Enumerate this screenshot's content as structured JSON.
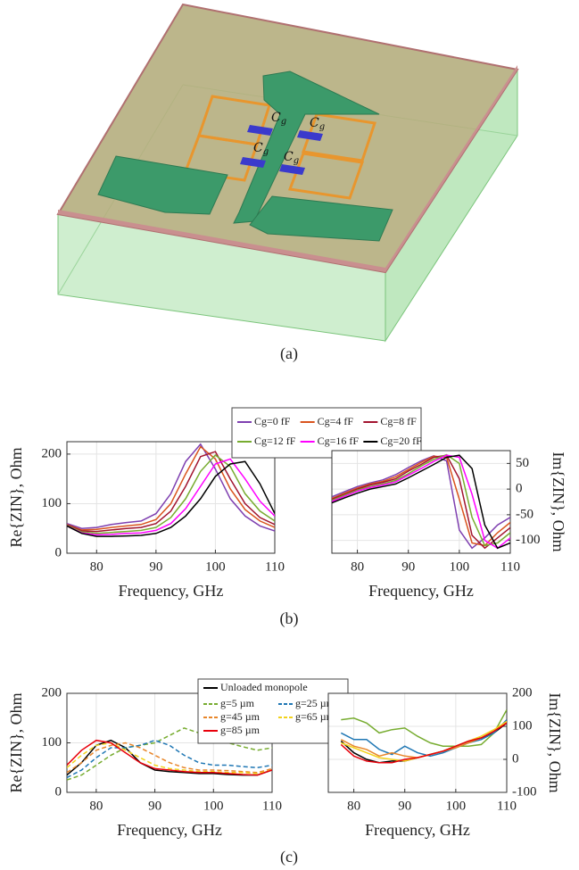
{
  "diagram": {
    "capacitor_labels": [
      {
        "main": "C",
        "sub": "g"
      },
      {
        "main": "C",
        "sub": "g"
      },
      {
        "main": "C",
        "sub": "g"
      },
      {
        "main": "C",
        "sub": "g"
      }
    ]
  },
  "captions": [
    "(a)",
    "(b)",
    "(c)"
  ],
  "chart_data": [
    {
      "type": "line",
      "xlabel": "Frequency, GHz",
      "ylabel": "Re{ZIN}, Ohm",
      "yaxis": "left",
      "grid": true,
      "xlim": [
        75,
        110
      ],
      "ylim": [
        0,
        225
      ],
      "xticks": [
        80,
        90,
        100,
        110
      ],
      "yticks": [
        0,
        100,
        200
      ],
      "x": [
        75,
        77.5,
        80,
        82.5,
        85,
        87.5,
        90,
        92.5,
        95,
        97.5,
        100,
        102.5,
        105,
        107.5,
        110
      ],
      "series": [
        {
          "name": "Cg=0 fF",
          "color": "#7e3fb0",
          "values": [
            60,
            50,
            52,
            58,
            62,
            65,
            80,
            120,
            185,
            220,
            170,
            110,
            75,
            55,
            45
          ]
        },
        {
          "name": "Cg=4 fF",
          "color": "#d9541e",
          "values": [
            58,
            47,
            48,
            52,
            55,
            58,
            68,
            100,
            160,
            215,
            190,
            130,
            88,
            65,
            52
          ]
        },
        {
          "name": "Cg=8 fF",
          "color": "#a2142f",
          "values": [
            57,
            45,
            44,
            47,
            50,
            52,
            60,
            85,
            135,
            195,
            205,
            150,
            100,
            72,
            58
          ]
        },
        {
          "name": "Cg=12 fF",
          "color": "#77ac30",
          "values": [
            56,
            43,
            40,
            42,
            44,
            46,
            52,
            72,
            110,
            165,
            198,
            175,
            120,
            85,
            65
          ]
        },
        {
          "name": "Cg=16 fF",
          "color": "#ff00ff",
          "values": [
            55,
            41,
            37,
            38,
            40,
            41,
            46,
            60,
            90,
            135,
            180,
            190,
            150,
            105,
            75
          ]
        },
        {
          "name": "Cg=20 fF",
          "color": "#000000",
          "values": [
            55,
            40,
            34,
            34,
            35,
            36,
            40,
            52,
            75,
            110,
            155,
            180,
            185,
            140,
            80
          ]
        }
      ]
    },
    {
      "type": "line",
      "xlabel": "Frequency, GHz",
      "ylabel": "Im{ZIN}, Ohm",
      "yaxis": "right",
      "grid": true,
      "xlim": [
        75,
        110
      ],
      "ylim": [
        -125,
        75
      ],
      "xticks": [
        80,
        90,
        100,
        110
      ],
      "yticks": [
        -100,
        -50,
        0,
        50
      ],
      "x": [
        75,
        77.5,
        80,
        82.5,
        85,
        87.5,
        90,
        92.5,
        95,
        97.5,
        100,
        102.5,
        105,
        107.5,
        110
      ],
      "series": [
        {
          "color": "#7e3fb0",
          "values": [
            -15,
            -5,
            5,
            12,
            18,
            28,
            42,
            55,
            65,
            55,
            -80,
            -115,
            -95,
            -70,
            -55
          ]
        },
        {
          "color": "#d9541e",
          "values": [
            -18,
            -8,
            2,
            10,
            15,
            24,
            38,
            52,
            64,
            62,
            -20,
            -105,
            -110,
            -85,
            -65
          ]
        },
        {
          "color": "#a2142f",
          "values": [
            -20,
            -10,
            0,
            8,
            13,
            20,
            35,
            48,
            62,
            66,
            20,
            -90,
            -115,
            -95,
            -75
          ]
        },
        {
          "color": "#77ac30",
          "values": [
            -22,
            -12,
            -2,
            5,
            10,
            17,
            30,
            45,
            58,
            67,
            50,
            -55,
            -110,
            -105,
            -85
          ]
        },
        {
          "color": "#ff00ff",
          "values": [
            -24,
            -14,
            -4,
            3,
            8,
            14,
            27,
            40,
            54,
            66,
            62,
            -10,
            -100,
            -115,
            -95
          ]
        },
        {
          "color": "#000000",
          "values": [
            -27,
            -17,
            -8,
            0,
            5,
            10,
            22,
            35,
            48,
            62,
            66,
            40,
            -70,
            -115,
            -105
          ]
        }
      ]
    },
    {
      "type": "line",
      "xlabel": "Frequency, GHz",
      "ylabel": "Re{ZIN}, Ohm",
      "yaxis": "left",
      "grid": true,
      "xlim": [
        75,
        110
      ],
      "ylim": [
        0,
        200
      ],
      "xticks": [
        80,
        90,
        100,
        110
      ],
      "yticks": [
        0,
        100,
        200
      ],
      "x": [
        75,
        77.5,
        80,
        82.5,
        85,
        87.5,
        90,
        92.5,
        95,
        97.5,
        100,
        102.5,
        105,
        107.5,
        110
      ],
      "series": [
        {
          "name": "Unloaded monopole",
          "color": "#000000",
          "dashed": false,
          "values": [
            35,
            60,
            95,
            105,
            90,
            60,
            45,
            42,
            40,
            38,
            38,
            36,
            35,
            35,
            45
          ]
        },
        {
          "name": "g=5 µm",
          "color": "#77ac30",
          "dashed": true,
          "values": [
            25,
            35,
            55,
            75,
            90,
            95,
            100,
            115,
            130,
            120,
            105,
            100,
            92,
            85,
            90
          ]
        },
        {
          "name": "g=25 µm",
          "color": "#1f77b4",
          "dashed": true,
          "values": [
            30,
            45,
            70,
            90,
            90,
            95,
            105,
            95,
            75,
            60,
            55,
            55,
            52,
            50,
            55
          ]
        },
        {
          "name": "g=45 µm",
          "color": "#e8862a",
          "dashed": true,
          "values": [
            40,
            60,
            85,
            95,
            100,
            90,
            75,
            60,
            50,
            45,
            45,
            44,
            42,
            40,
            48
          ]
        },
        {
          "name": "g=65 µm",
          "color": "#f2d21b",
          "dashed": true,
          "values": [
            50,
            75,
            95,
            100,
            85,
            70,
            55,
            48,
            45,
            42,
            42,
            40,
            40,
            38,
            45
          ]
        },
        {
          "name": "g=85 µm",
          "color": "#e8000b",
          "dashed": false,
          "values": [
            55,
            85,
            105,
            100,
            80,
            60,
            48,
            45,
            42,
            40,
            40,
            38,
            36,
            35,
            45
          ]
        }
      ]
    },
    {
      "type": "line",
      "xlabel": "Frequency, GHz",
      "ylabel": "Im{ZIN}, Ohm",
      "yaxis": "right",
      "grid": true,
      "xlim": [
        75,
        110
      ],
      "ylim": [
        -100,
        200
      ],
      "xticks": [
        80,
        90,
        100,
        110
      ],
      "yticks": [
        -100,
        0,
        100,
        200
      ],
      "x": [
        75,
        77.5,
        80,
        82.5,
        85,
        87.5,
        90,
        92.5,
        95,
        97.5,
        100,
        102.5,
        105,
        107.5,
        110
      ],
      "series": [
        {
          "color": "#000000",
          "dashed": false,
          "values": [
            null,
            55,
            20,
            0,
            -10,
            -5,
            -5,
            5,
            15,
            25,
            40,
            55,
            65,
            80,
            110
          ]
        },
        {
          "color": "#77ac30",
          "dashed": false,
          "values": [
            null,
            120,
            125,
            110,
            80,
            90,
            95,
            70,
            50,
            40,
            40,
            40,
            45,
            80,
            150
          ]
        },
        {
          "color": "#1f77b4",
          "dashed": false,
          "values": [
            null,
            80,
            60,
            60,
            30,
            15,
            40,
            20,
            10,
            20,
            35,
            50,
            60,
            80,
            120
          ]
        },
        {
          "color": "#e8862a",
          "dashed": false,
          "values": [
            null,
            60,
            40,
            30,
            10,
            20,
            10,
            5,
            15,
            25,
            35,
            50,
            65,
            85,
            115
          ]
        },
        {
          "color": "#f2d21b",
          "dashed": false,
          "values": [
            null,
            50,
            35,
            20,
            5,
            0,
            -5,
            5,
            15,
            25,
            40,
            55,
            70,
            90,
            115
          ]
        },
        {
          "color": "#e8000b",
          "dashed": false,
          "values": [
            null,
            45,
            10,
            -5,
            -10,
            -10,
            0,
            5,
            15,
            25,
            40,
            55,
            65,
            85,
            110
          ]
        }
      ]
    }
  ]
}
